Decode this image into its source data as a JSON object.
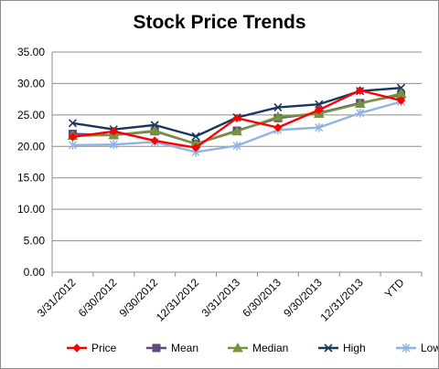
{
  "chart_data": {
    "type": "line",
    "title": "Stock Price Trends",
    "xlabel": "",
    "ylabel": "",
    "ylim": [
      0,
      35
    ],
    "yticks": [
      "0.00",
      "5.00",
      "10.00",
      "15.00",
      "20.00",
      "25.00",
      "30.00",
      "35.00"
    ],
    "grid": true,
    "legend_position": "bottom",
    "categories": [
      "3/31/2012",
      "6/30/2012",
      "9/30/2012",
      "12/31/2012",
      "3/31/2013",
      "6/30/2013",
      "9/30/2013",
      "12/31/2013",
      "YTD"
    ],
    "series": [
      {
        "name": "Price",
        "color": "#ff0000",
        "marker": "diamond",
        "values": [
          21.5,
          22.4,
          20.9,
          19.8,
          24.5,
          23.0,
          25.8,
          28.9,
          27.3
        ]
      },
      {
        "name": "Mean",
        "color": "#604a7b",
        "marker": "square",
        "values": [
          22.0,
          21.8,
          22.4,
          20.4,
          22.5,
          24.5,
          25.3,
          26.9,
          28.2
        ]
      },
      {
        "name": "Median",
        "color": "#77933c",
        "marker": "triangle",
        "values": [
          21.7,
          21.8,
          22.5,
          20.4,
          22.4,
          24.7,
          25.2,
          26.8,
          28.4
        ]
      },
      {
        "name": "High",
        "color": "#17375e",
        "marker": "x",
        "values": [
          23.7,
          22.7,
          23.4,
          21.6,
          24.6,
          26.2,
          26.7,
          28.8,
          29.3
        ]
      },
      {
        "name": "Low",
        "color": "#8eb4e3",
        "marker": "star",
        "values": [
          20.2,
          20.3,
          20.7,
          19.1,
          20.1,
          22.6,
          23.0,
          25.3,
          27.1
        ]
      }
    ]
  }
}
